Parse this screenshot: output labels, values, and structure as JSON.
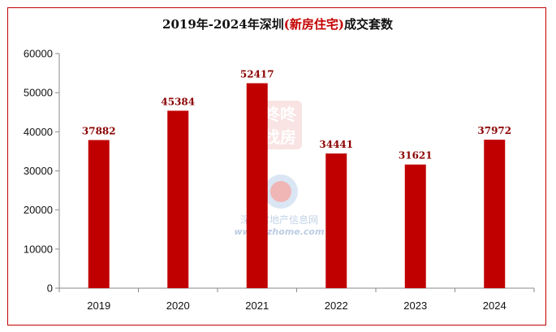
{
  "chart_data": {
    "type": "bar",
    "title_parts": [
      "2019年-2024年深圳",
      "(新房住宅)",
      "成交套数"
    ],
    "categories": [
      "2019",
      "2020",
      "2021",
      "2022",
      "2023",
      "2024"
    ],
    "values": [
      37882,
      45384,
      52417,
      34441,
      31621,
      37972
    ],
    "ylim": [
      0,
      60000
    ],
    "yticks": [
      0,
      10000,
      20000,
      30000,
      40000,
      50000,
      60000
    ],
    "grid": false,
    "bar_color": "#c00000"
  },
  "watermark": {
    "brand_lines": [
      "咚咚",
      "找房"
    ],
    "site_name": "深圳房地产信息网",
    "site_url": "www.szhome.com"
  }
}
